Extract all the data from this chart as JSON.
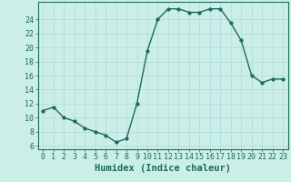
{
  "x": [
    0,
    1,
    2,
    3,
    4,
    5,
    6,
    7,
    8,
    9,
    10,
    11,
    12,
    13,
    14,
    15,
    16,
    17,
    18,
    19,
    20,
    21,
    22,
    23
  ],
  "y": [
    11,
    11.5,
    10,
    9.5,
    8.5,
    8,
    7.5,
    6.5,
    7,
    12,
    19.5,
    24,
    25.5,
    25.5,
    25,
    25,
    25.5,
    25.5,
    23.5,
    21,
    16,
    15,
    15.5,
    15.5
  ],
  "line_color": "#1a6b5a",
  "marker_color": "#1a6b5a",
  "bg_color": "#cceee8",
  "grid_color": "#aaddda",
  "xlabel": "Humidex (Indice chaleur)",
  "xlabel_fontsize": 7.5,
  "yticks": [
    6,
    8,
    10,
    12,
    14,
    16,
    18,
    20,
    22,
    24
  ],
  "ylim": [
    5.5,
    26.5
  ],
  "xlim": [
    -0.5,
    23.5
  ],
  "xtick_labels": [
    "0",
    "1",
    "2",
    "3",
    "4",
    "5",
    "6",
    "7",
    "8",
    "9",
    "10",
    "11",
    "12",
    "13",
    "14",
    "15",
    "16",
    "17",
    "18",
    "19",
    "20",
    "21",
    "22",
    "23"
  ],
  "tick_fontsize": 6,
  "marker_size": 2.5,
  "line_width": 1.0
}
